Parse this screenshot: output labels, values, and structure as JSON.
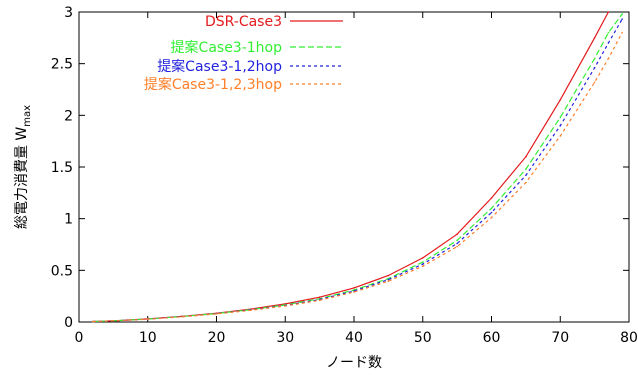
{
  "chart_data": {
    "type": "line",
    "xlabel": "ノード数",
    "ylabel": "総電力消費量 W",
    "ylabel_sub": "max",
    "xlim": [
      0,
      80
    ],
    "ylim": [
      0,
      3
    ],
    "xticks": [
      0,
      10,
      20,
      30,
      40,
      50,
      60,
      70,
      80
    ],
    "yticks": [
      0,
      0.5,
      1,
      1.5,
      2,
      2.5,
      3
    ],
    "ytick_labels": [
      "0",
      "0.5",
      "1",
      "1.5",
      "2",
      "2.5",
      "3"
    ],
    "legend_position": "top-left",
    "grid": false,
    "x": [
      2,
      5,
      10,
      15,
      20,
      25,
      30,
      35,
      40,
      45,
      50,
      55,
      60,
      65,
      70,
      75,
      77,
      79
    ],
    "series": [
      {
        "name": "DSR-Case3",
        "color": "#e41a1c",
        "dash": "solid",
        "values": [
          0.005,
          0.012,
          0.03,
          0.055,
          0.085,
          0.125,
          0.175,
          0.24,
          0.33,
          0.45,
          0.62,
          0.85,
          1.2,
          1.6,
          2.15,
          2.75,
          3.0,
          null
        ]
      },
      {
        "name": "提案Case3-1hop",
        "color": "#33ee33",
        "dash": "dashed",
        "values": [
          0.005,
          0.012,
          0.029,
          0.053,
          0.082,
          0.12,
          0.165,
          0.225,
          0.31,
          0.42,
          0.58,
          0.79,
          1.1,
          1.48,
          1.98,
          2.55,
          2.8,
          2.98
        ]
      },
      {
        "name": "提案Case3-1,2hop",
        "color": "#2222dd",
        "dash": "dotted",
        "values": [
          0.005,
          0.011,
          0.028,
          0.052,
          0.08,
          0.117,
          0.16,
          0.218,
          0.3,
          0.41,
          0.56,
          0.76,
          1.06,
          1.42,
          1.9,
          2.46,
          2.7,
          2.93
        ]
      },
      {
        "name": "提案Case3-1,2,3hop",
        "color": "#ff7f2a",
        "dash": "dotted",
        "values": [
          0.005,
          0.011,
          0.027,
          0.05,
          0.078,
          0.113,
          0.155,
          0.21,
          0.29,
          0.395,
          0.54,
          0.73,
          1.01,
          1.35,
          1.8,
          2.32,
          2.55,
          2.8
        ]
      }
    ]
  }
}
